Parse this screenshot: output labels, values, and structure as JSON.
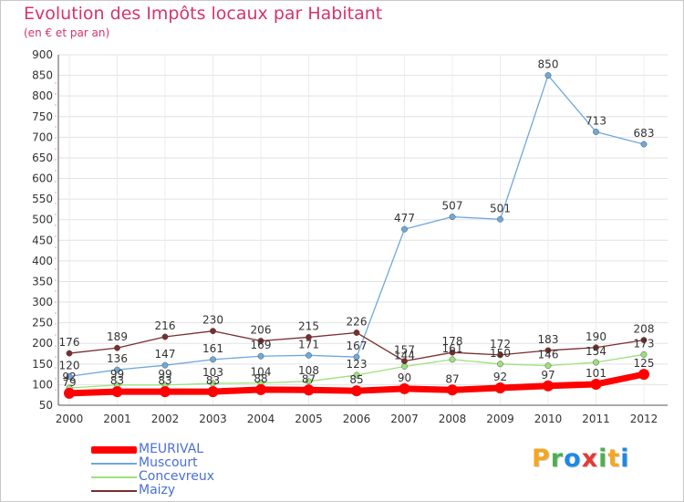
{
  "title": "Evolution des Impôts locaux par Habitant",
  "subtitle": "(en € et par an)",
  "brand": {
    "letters": [
      "P",
      "r",
      "o",
      "x",
      "i",
      "t",
      "i"
    ],
    "colors": [
      "#f5a623",
      "#4caf50",
      "#1e88e5",
      "#e53935",
      "#4caf50",
      "#f5a623",
      "#1e88e5"
    ]
  },
  "chart_data": {
    "type": "line",
    "title": "Evolution des Impôts locaux par Habitant",
    "subtitle": "(en € et par an)",
    "xlabel": "",
    "ylabel": "",
    "ylim": [
      50,
      900
    ],
    "yticks": [
      "50",
      "100",
      "150",
      "200",
      "250",
      "300",
      "350",
      "400",
      "450",
      "500",
      "550",
      "600",
      "650",
      "700",
      "750",
      "800",
      "850",
      "900"
    ],
    "categories": [
      "2000",
      "2001",
      "2002",
      "2003",
      "2004",
      "2005",
      "2006",
      "2007",
      "2008",
      "2009",
      "2010",
      "2011",
      "2012"
    ],
    "legend_position": "bottom-left",
    "series": [
      {
        "name": "MEURIVAL",
        "color": "#ff0000",
        "values": [
          79,
          83,
          83,
          83,
          88,
          87,
          85,
          90,
          87,
          92,
          97,
          101,
          125
        ],
        "labels": [
          "79",
          "83",
          "83",
          "83",
          "88",
          "87",
          "85",
          "90",
          "87",
          "92",
          "97",
          "101",
          "125"
        ]
      },
      {
        "name": "Muscourt",
        "color": "#6fa8dc",
        "values": [
          120,
          136,
          147,
          161,
          169,
          171,
          167,
          477,
          507,
          501,
          850,
          713,
          683
        ],
        "labels": [
          "120",
          "136",
          "147",
          "161",
          "169",
          "171",
          "167",
          "477",
          "507",
          "501",
          "850",
          "713",
          "683"
        ]
      },
      {
        "name": "Concevreux",
        "color": "#9be27c",
        "values": [
          92,
          99,
          99,
          103,
          104,
          108,
          123,
          144,
          161,
          150,
          146,
          154,
          173
        ],
        "labels": [
          "92",
          "99",
          "99",
          "103",
          "104",
          "108",
          "123",
          "144",
          "161",
          "150",
          "146",
          "154",
          "173"
        ]
      },
      {
        "name": "Maizy",
        "color": "#7a2d2d",
        "values": [
          176,
          189,
          216,
          230,
          206,
          215,
          226,
          157,
          178,
          172,
          183,
          190,
          208
        ],
        "labels": [
          "176",
          "189",
          "216",
          "230",
          "206",
          "215",
          "226",
          "157",
          "178",
          "172",
          "183",
          "190",
          "208"
        ]
      }
    ]
  }
}
